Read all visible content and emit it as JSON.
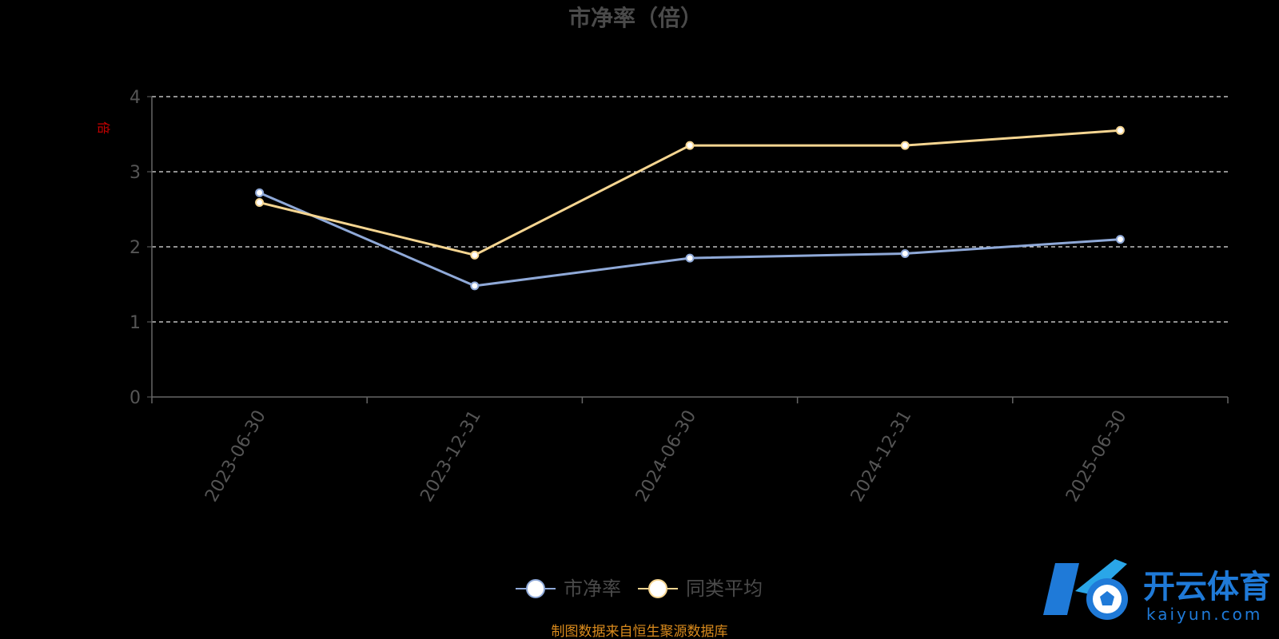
{
  "chart_data": {
    "type": "line",
    "title": "市净率（倍）",
    "ylabel": "倍",
    "categories": [
      "2023-06-30",
      "2023-12-31",
      "2024-06-30",
      "2024-12-31",
      "2025-06-30"
    ],
    "yticks": [
      "0",
      "1",
      "2",
      "3",
      "4"
    ],
    "ylim": [
      0,
      4
    ],
    "grid": true,
    "legend_position": "bottom",
    "series": [
      {
        "name": "市净率",
        "values": [
          2.72,
          1.48,
          1.85,
          1.91,
          2.1
        ],
        "color": "#8fa9d8"
      },
      {
        "name": "同类平均",
        "values": [
          2.59,
          1.89,
          3.35,
          3.35,
          3.55
        ],
        "color": "#f5d591"
      }
    ]
  },
  "source_text": "制图数据来自恒生聚源数据库",
  "watermark": {
    "cn": "开云体育",
    "en": "kaiyun.com",
    "icon": "soccer-ball-logo-icon",
    "color": "#1f7ad8"
  }
}
